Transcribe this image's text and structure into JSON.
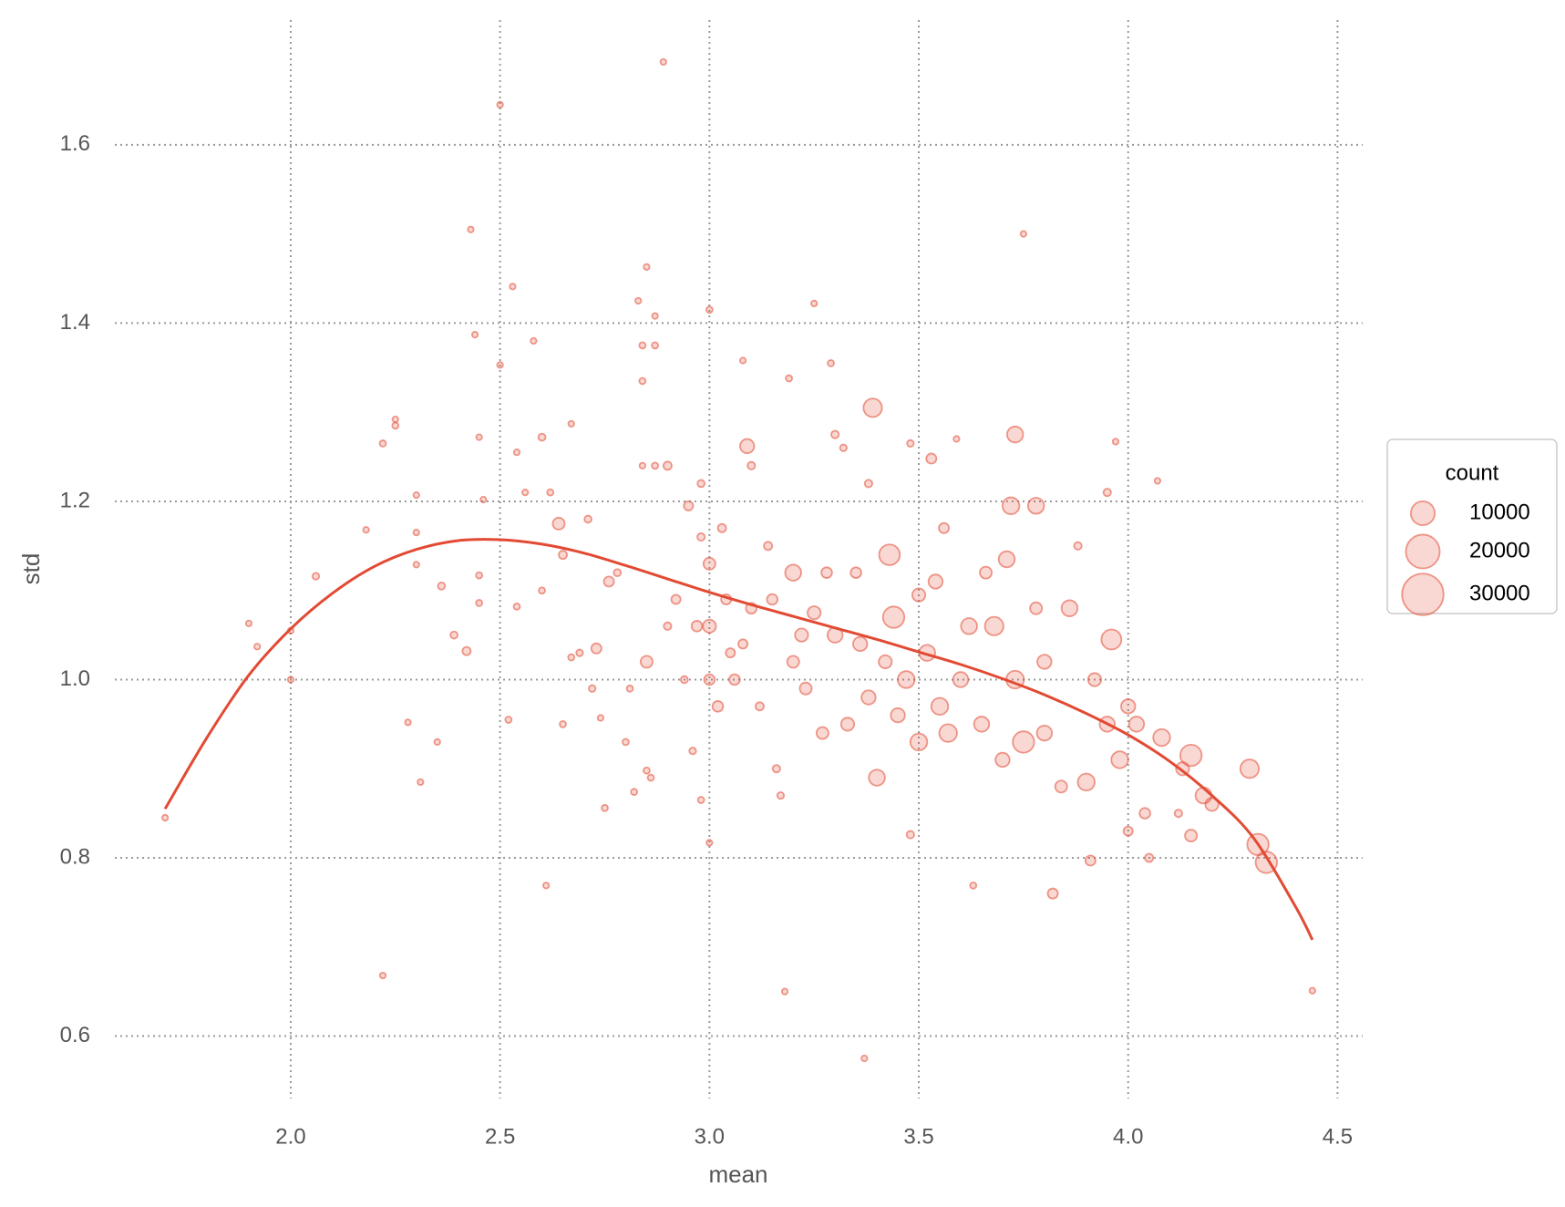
{
  "chart_data": {
    "type": "scatter",
    "xlabel": "mean",
    "ylabel": "std",
    "color": "#e24a33",
    "grid": true,
    "legend": "right",
    "xlim": [
      1.58,
      4.56
    ],
    "ylim": [
      0.53,
      1.74
    ],
    "xticks": [
      {
        "value": 2,
        "label": "2.0"
      },
      2.5,
      {
        "value": 3,
        "label": "3.0"
      },
      3.5,
      {
        "value": 4,
        "label": "4.0"
      },
      4.5
    ],
    "yticks": [
      0.6,
      0.8,
      {
        "value": 1,
        "label": "1.0"
      },
      1.2,
      1.4,
      1.6
    ],
    "size_legend": {
      "title": "count",
      "values": [
        10000,
        20000,
        30000
      ]
    },
    "points": {
      "x": [
        1.7,
        1.9,
        1.92,
        2.0,
        2.0,
        2.06,
        2.18,
        2.22,
        2.25,
        2.25,
        2.28,
        2.3,
        2.3,
        2.3,
        2.31,
        2.22,
        2.35,
        2.36,
        2.39,
        2.42,
        2.43,
        2.44,
        2.45,
        2.45,
        2.45,
        2.46,
        2.5,
        2.5,
        2.52,
        2.53,
        2.54,
        2.54,
        2.56,
        2.58,
        2.6,
        2.6,
        2.61,
        2.62,
        2.64,
        2.65,
        2.65,
        2.67,
        2.67,
        2.69,
        2.71,
        2.72,
        2.73,
        2.74,
        2.75,
        2.76,
        2.78,
        2.8,
        2.81,
        2.82,
        2.83,
        2.84,
        2.84,
        2.84,
        2.85,
        2.85,
        2.85,
        2.86,
        2.87,
        2.87,
        2.87,
        2.89,
        2.9,
        2.9,
        2.92,
        2.94,
        2.95,
        2.96,
        2.97,
        2.98,
        2.98,
        2.98,
        3.0,
        3.0,
        3.0,
        3.0,
        3.0,
        3.02,
        3.03,
        3.04,
        3.05,
        3.06,
        3.08,
        3.08,
        3.09,
        3.1,
        3.1,
        3.12,
        3.14,
        3.15,
        3.16,
        3.17,
        3.18,
        3.19,
        3.2,
        3.2,
        3.22,
        3.23,
        3.25,
        3.25,
        3.27,
        3.28,
        3.29,
        3.3,
        3.3,
        3.32,
        3.33,
        3.35,
        3.36,
        3.37,
        3.38,
        3.38,
        3.39,
        3.4,
        3.42,
        3.43,
        3.44,
        3.45,
        3.47,
        3.48,
        3.48,
        3.5,
        3.5,
        3.52,
        3.53,
        3.54,
        3.55,
        3.56,
        3.57,
        3.59,
        3.6,
        3.62,
        3.63,
        3.65,
        3.66,
        3.68,
        3.7,
        3.71,
        3.72,
        3.73,
        3.73,
        3.75,
        3.75,
        3.78,
        3.78,
        3.8,
        3.8,
        3.82,
        3.84,
        3.86,
        3.88,
        3.9,
        3.91,
        3.92,
        3.95,
        3.95,
        3.96,
        3.97,
        3.98,
        4.0,
        4.0,
        4.02,
        4.04,
        4.05,
        4.07,
        4.08,
        4.12,
        4.13,
        4.15,
        4.15,
        4.18,
        4.2,
        4.29,
        4.31,
        4.33,
        4.44
      ],
      "values": [
        0.845,
        1.063,
        1.037,
        1.055,
        1.0,
        1.116,
        1.168,
        1.265,
        1.292,
        1.285,
        0.952,
        1.207,
        1.165,
        1.129,
        0.885,
        0.668,
        0.93,
        1.105,
        1.05,
        1.032,
        1.505,
        1.387,
        1.272,
        1.117,
        1.086,
        1.202,
        1.645,
        1.353,
        0.955,
        1.441,
        1.255,
        1.082,
        1.21,
        1.38,
        1.272,
        1.1,
        0.769,
        1.21,
        1.175,
        1.14,
        0.95,
        1.287,
        1.025,
        1.03,
        1.18,
        0.99,
        1.035,
        0.957,
        0.856,
        1.11,
        1.12,
        0.93,
        0.99,
        0.874,
        1.425,
        1.375,
        1.335,
        1.24,
        1.463,
        1.02,
        0.898,
        0.89,
        1.408,
        1.375,
        1.24,
        1.693,
        1.24,
        1.06,
        1.09,
        1.0,
        1.195,
        0.92,
        1.06,
        1.22,
        1.16,
        0.865,
        1.415,
        1.13,
        1.06,
        1.0,
        0.817,
        0.97,
        1.17,
        1.09,
        1.03,
        1.0,
        1.358,
        1.04,
        1.262,
        1.24,
        1.08,
        0.97,
        1.15,
        1.09,
        0.9,
        0.87,
        0.65,
        1.338,
        1.12,
        1.02,
        1.05,
        0.99,
        1.422,
        1.075,
        0.94,
        1.12,
        1.355,
        1.275,
        1.05,
        1.26,
        0.95,
        1.12,
        1.04,
        0.575,
        1.22,
        0.98,
        1.305,
        0.89,
        1.02,
        1.14,
        1.07,
        0.96,
        1.0,
        0.826,
        1.265,
        1.095,
        0.93,
        1.03,
        1.248,
        1.11,
        0.97,
        1.17,
        0.94,
        1.27,
        1.0,
        1.06,
        0.769,
        0.95,
        1.12,
        1.06,
        0.91,
        1.135,
        1.195,
        1.275,
        1.0,
        1.5,
        0.93,
        1.195,
        1.08,
        0.94,
        1.02,
        0.76,
        0.88,
        1.08,
        1.15,
        0.885,
        0.797,
        1.0,
        0.95,
        1.21,
        1.045,
        1.267,
        0.91,
        0.97,
        0.83,
        0.95,
        0.85,
        0.8,
        1.223,
        0.935,
        0.85,
        0.9,
        0.915,
        0.825,
        0.87,
        0.86,
        0.9,
        0.815,
        0.795,
        0.651
      ],
      "sizes": [
        600,
        600,
        600,
        600,
        600,
        800,
        600,
        700,
        600,
        700,
        600,
        600,
        600,
        600,
        600,
        600,
        600,
        900,
        900,
        1200,
        600,
        600,
        600,
        700,
        700,
        600,
        600,
        600,
        700,
        600,
        600,
        700,
        600,
        600,
        900,
        700,
        600,
        700,
        2500,
        1200,
        700,
        600,
        700,
        800,
        900,
        800,
        1800,
        600,
        700,
        1800,
        900,
        700,
        700,
        700,
        600,
        700,
        700,
        600,
        600,
        2500,
        700,
        700,
        600,
        700,
        700,
        600,
        1200,
        1000,
        1500,
        900,
        1500,
        800,
        2000,
        900,
        1000,
        700,
        700,
        2500,
        3000,
        2000,
        600,
        2000,
        1200,
        1800,
        1500,
        2000,
        600,
        1500,
        3500,
        1000,
        2000,
        1200,
        1200,
        2000,
        1000,
        800,
        600,
        700,
        4500,
        2500,
        3000,
        2500,
        600,
        3000,
        2500,
        2000,
        700,
        1000,
        4000,
        800,
        3000,
        2000,
        3500,
        600,
        1000,
        3500,
        6000,
        4500,
        3000,
        7500,
        8000,
        3500,
        5000,
        1000,
        800,
        3000,
        5000,
        4500,
        1800,
        3500,
        5000,
        1800,
        5500,
        600,
        4000,
        4500,
        700,
        4000,
        2500,
        6000,
        3500,
        4500,
        5000,
        4500,
        5500,
        600,
        8000,
        4500,
        2500,
        4000,
        3500,
        1800,
        2500,
        4500,
        1000,
        5000,
        1800,
        3000,
        4000,
        1000,
        7000,
        600,
        5000,
        3500,
        1500,
        4000,
        2000,
        1200,
        600,
        5000,
        1000,
        3000,
        8000,
        2500,
        4500,
        3000,
        6000,
        8000,
        8000,
        600
      ]
    },
    "fit": {
      "x": [
        1.7,
        1.8,
        1.9,
        2.0,
        2.1,
        2.2,
        2.3,
        2.4,
        2.5,
        2.6,
        2.7,
        2.8,
        2.9,
        3.0,
        3.1,
        3.2,
        3.3,
        3.4,
        3.5,
        3.6,
        3.7,
        3.8,
        3.9,
        4.0,
        4.1,
        4.2,
        4.3,
        4.4,
        4.44
      ],
      "values": [
        0.855,
        0.935,
        1.005,
        1.057,
        1.097,
        1.127,
        1.146,
        1.156,
        1.157,
        1.152,
        1.142,
        1.128,
        1.113,
        1.098,
        1.084,
        1.071,
        1.058,
        1.045,
        1.031,
        1.017,
        1.001,
        0.983,
        0.962,
        0.938,
        0.908,
        0.87,
        0.822,
        0.745,
        0.708
      ]
    }
  }
}
